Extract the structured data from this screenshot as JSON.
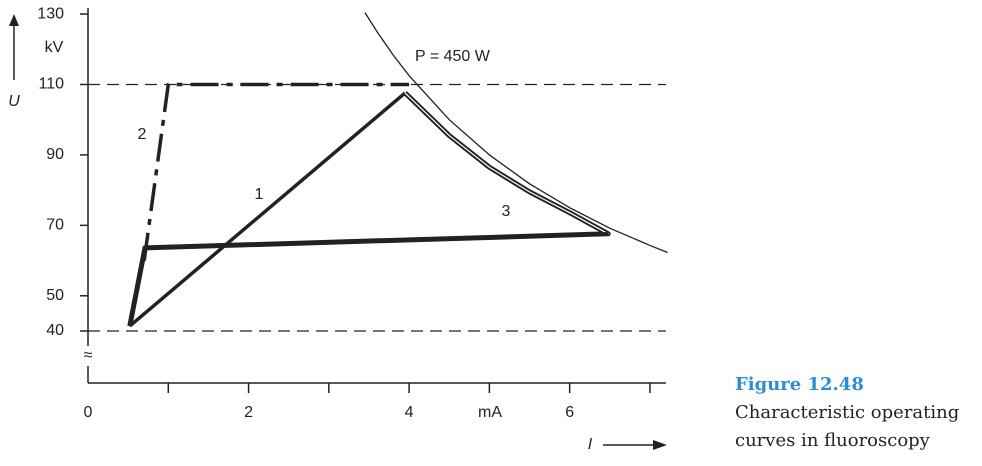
{
  "chart_data": {
    "type": "line",
    "y_unit": "kV",
    "y_label": "U",
    "x_unit": "mA",
    "x_label": "I",
    "xlim": [
      0,
      7.2
    ],
    "xticks": [
      0,
      2,
      4,
      6
    ],
    "xminorticks": [
      1,
      3,
      5,
      7
    ],
    "ylim": [
      40,
      132
    ],
    "yticks": [
      40,
      50,
      70,
      90,
      110,
      130
    ],
    "hlines": [
      40,
      110
    ],
    "series": [
      {
        "name": "P = 450 W",
        "color": "#222222",
        "style": "thin",
        "x": [
          3.45,
          3.6,
          3.8,
          4,
          4.5,
          5,
          5.5,
          6,
          6.5,
          7,
          7.22
        ],
        "values": [
          130.4,
          125,
          118.4,
          112.5,
          100,
          90,
          81.8,
          75,
          69.2,
          64.3,
          62.3
        ]
      },
      {
        "name": "1",
        "color": "#222222",
        "style": "solid",
        "x": [
          0.52,
          3.95
        ],
        "values": [
          41.4,
          107.6
        ]
      },
      {
        "name": "2",
        "color": "#222222",
        "style": "dashdot",
        "x": [
          0.7,
          1.0,
          4.0
        ],
        "values": [
          60,
          110,
          110
        ]
      },
      {
        "name": "3",
        "color": "#222222",
        "style": "double",
        "x": [
          0.52,
          0.71,
          6.48,
          6,
          5.5,
          5,
          4.5,
          3.95
        ],
        "values": [
          41.4,
          63.6,
          67.6,
          73.6,
          79.5,
          86.5,
          95.5,
          107.6
        ]
      }
    ],
    "caption": {
      "title": "Figure 12.48",
      "lines": [
        "Characteristic operating",
        "curves in fluoroscopy"
      ]
    }
  }
}
